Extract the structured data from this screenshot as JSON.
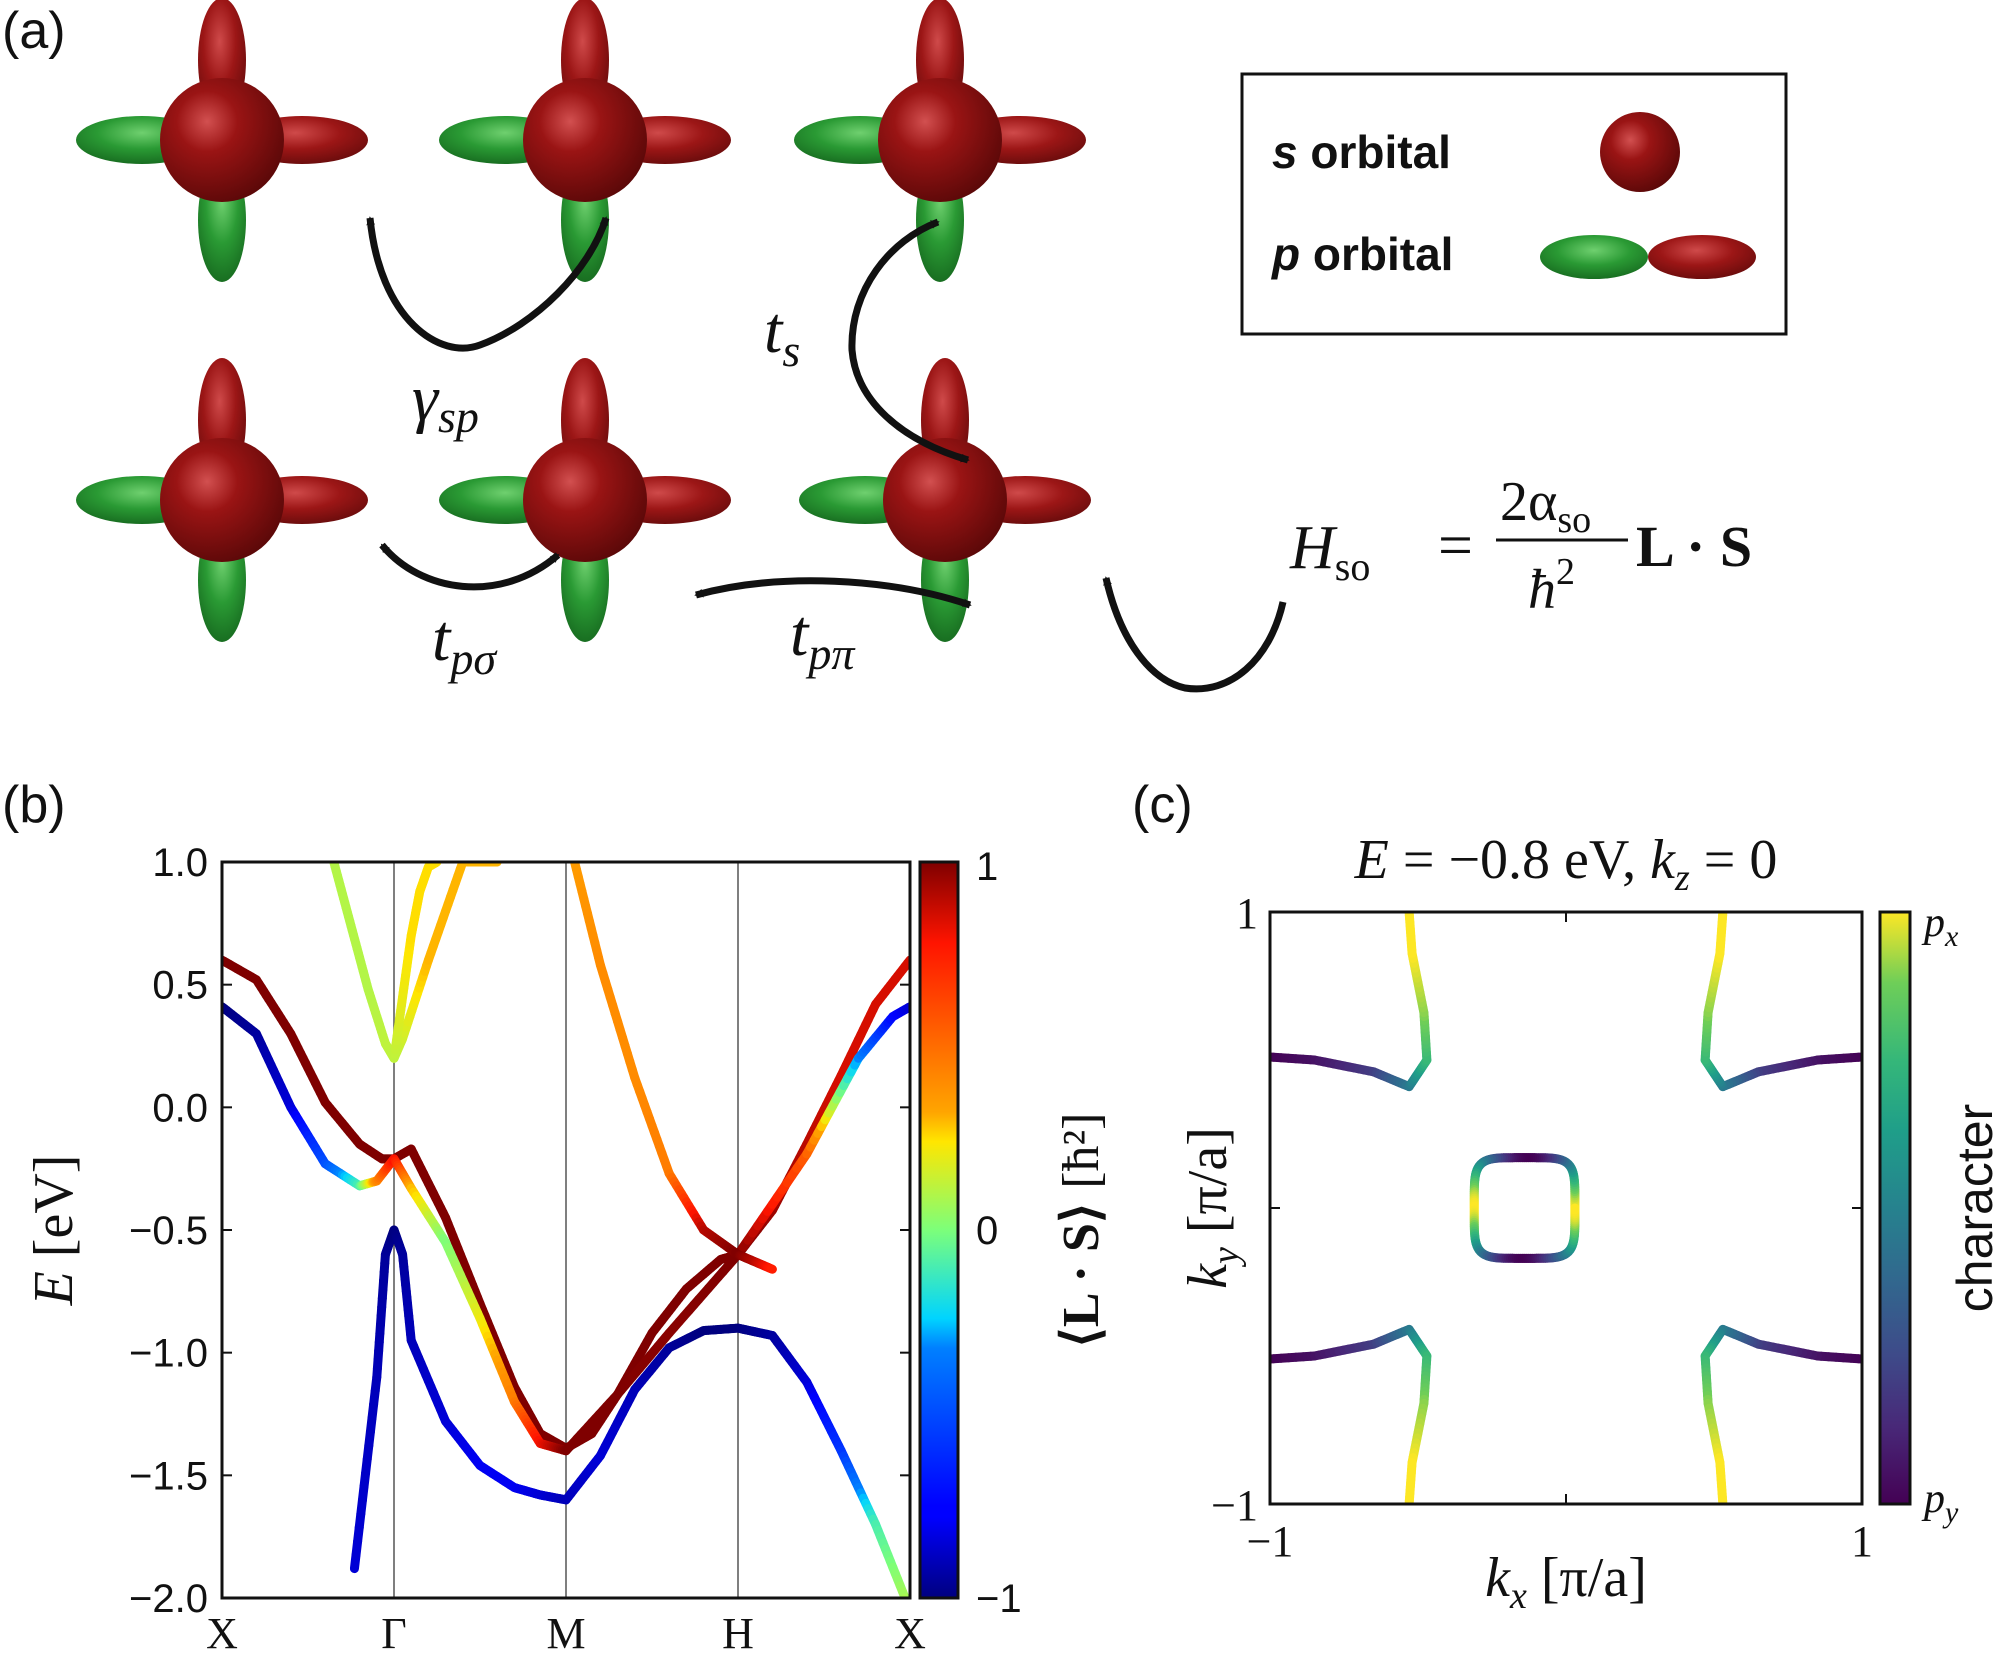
{
  "panels": {
    "a": {
      "label": "(a)",
      "legend": {
        "s_prefix": "s",
        "s_suffix": " orbital",
        "p_prefix": "p",
        "p_suffix": " orbital"
      },
      "hoppings": {
        "gamma_sp": {
          "main": "γ",
          "sub": "sp"
        },
        "t_s": {
          "main": "t",
          "sub": "s"
        },
        "t_psigma": {
          "main": "t",
          "sub": "pσ"
        },
        "t_ppi": {
          "main": "t",
          "sub": "pπ"
        }
      },
      "hamiltonian": {
        "lhs_main": "H",
        "lhs_sub": "so",
        "equals": "=",
        "numerator_coef": "2α",
        "numerator_sub": "so",
        "denominator_main": "ħ",
        "denominator_sup": "2",
        "operator": "L · S"
      }
    },
    "b": {
      "label": "(b)",
      "ylabel": {
        "main": "E",
        "unit": "[eV]"
      },
      "colorbar": {
        "ticks": [
          "1",
          "0",
          "−1"
        ],
        "label_bracket": "⟨L · S⟩",
        "label_unit": "[ħ²]"
      },
      "colors": {
        "neg": "#1a237e",
        "zero": "#7fd3b0",
        "pos": "#7f0000"
      }
    },
    "c": {
      "label": "(c)",
      "title": "E = −0.8 eV,  k_z = 0",
      "title_parts": {
        "e": "E",
        "eq": " = −0.8 eV,  ",
        "k": "k",
        "ksub": "z",
        "tail": " = 0"
      },
      "xlabel": {
        "main": "k",
        "sub": "x",
        "unit": "[π/a]"
      },
      "ylabel": {
        "main": "k",
        "sub": "y",
        "unit": "[π/a]"
      },
      "colorbar": {
        "label": "character",
        "top": {
          "main": "p",
          "sub": "x"
        },
        "bottom": {
          "main": "p",
          "sub": "y"
        }
      }
    }
  },
  "chart_data": [
    {
      "type": "line",
      "panel": "b",
      "xlabel": "",
      "ylabel": "E [eV]",
      "ylim": [
        -2.0,
        1.0
      ],
      "xlim": [
        0,
        4
      ],
      "yticks": [
        1.0,
        0.5,
        0.0,
        -0.5,
        -1.0,
        -1.5,
        -2.0
      ],
      "ytick_labels": [
        "1.0",
        "0.5",
        "0.0",
        "−0.5",
        "−1.0",
        "−1.5",
        "−2.0"
      ],
      "k_points": [
        "X",
        "Γ",
        "M",
        "H",
        "X"
      ],
      "k_point_positions": [
        0,
        1,
        2,
        3,
        4
      ],
      "colorbar_range": [
        -1,
        1
      ],
      "colormap": "jet",
      "series": [
        {
          "x": [
            0,
            0.2,
            0.4,
            0.6,
            0.8,
            0.93,
            1.0,
            1.1,
            1.3,
            1.5,
            1.7,
            1.85,
            2.0,
            2.15,
            2.3,
            2.5,
            2.7,
            2.9,
            3.0,
            3.2,
            3.4,
            3.6,
            3.8,
            4.0
          ],
          "y": [
            0.6,
            0.52,
            0.3,
            0.02,
            -0.15,
            -0.21,
            -0.21,
            -0.17,
            -0.45,
            -0.8,
            -1.14,
            -1.33,
            -1.39,
            -1.33,
            -1.17,
            -0.92,
            -0.74,
            -0.62,
            -0.6,
            -0.42,
            -0.15,
            0.13,
            0.42,
            0.6
          ],
          "c": [
            1,
            1,
            1,
            1,
            1,
            1,
            1,
            1,
            1,
            1,
            1,
            1,
            1,
            1,
            1,
            1,
            1,
            1,
            1,
            0.95,
            0.9,
            0.85,
            0.85,
            0.85
          ]
        },
        {
          "x": [
            0,
            0.2,
            0.4,
            0.6,
            0.8,
            0.9,
            1.0,
            1.1,
            1.3,
            1.5,
            1.7,
            1.85,
            2.0,
            2.3,
            2.6,
            3.0,
            3.4,
            3.7,
            3.9,
            4.0
          ],
          "y": [
            0.41,
            0.3,
            0.0,
            -0.23,
            -0.32,
            -0.3,
            -0.21,
            -0.33,
            -0.55,
            -0.86,
            -1.2,
            -1.37,
            -1.4,
            -1.17,
            -0.92,
            -0.6,
            -0.19,
            0.2,
            0.37,
            0.41
          ],
          "c": [
            -1,
            -0.95,
            -0.85,
            -0.5,
            -0.1,
            0.4,
            0.8,
            0.3,
            0.0,
            0.2,
            0.45,
            0.8,
            1,
            1,
            0.98,
            1,
            0.55,
            -0.3,
            -0.75,
            -0.85
          ]
        },
        {
          "x": [
            0.77,
            0.9,
            0.95,
            1.0,
            1.05,
            1.1,
            1.3,
            1.5,
            1.7,
            1.85,
            2.0,
            2.2,
            2.4,
            2.6,
            2.8,
            3.0,
            3.2,
            3.4,
            3.6,
            3.8,
            4.0
          ],
          "y": [
            -1.88,
            -1.1,
            -0.6,
            -0.5,
            -0.6,
            -0.95,
            -1.28,
            -1.46,
            -1.55,
            -1.58,
            -1.6,
            -1.42,
            -1.15,
            -0.98,
            -0.91,
            -0.9,
            -0.93,
            -1.12,
            -1.4,
            -1.7,
            -2.05
          ],
          "c": [
            -0.85,
            -0.9,
            -0.95,
            -1,
            -0.95,
            -0.9,
            -0.85,
            -0.8,
            -0.8,
            -0.85,
            -0.9,
            -0.85,
            -0.9,
            -0.95,
            -1,
            -1,
            -0.95,
            -0.85,
            -0.6,
            -0.1,
            0.1
          ]
        },
        {
          "x": [
            0.65,
            0.75,
            0.85,
            0.95,
            1.0,
            1.05,
            1.2,
            1.4,
            1.55,
            1.6
          ],
          "y": [
            1.0,
            0.74,
            0.48,
            0.26,
            0.2,
            0.28,
            0.6,
            1.0,
            1.0,
            1.0
          ],
          "c": [
            0.1,
            0.1,
            0.1,
            0.12,
            0.12,
            0.15,
            0.3,
            0.3,
            0.3,
            0.3
          ]
        },
        {
          "x": [
            1.0,
            1.05,
            1.1,
            1.15,
            1.2,
            1.25
          ],
          "y": [
            0.2,
            0.45,
            0.7,
            0.88,
            0.98,
            1.0
          ],
          "c": [
            0.12,
            0.2,
            0.25,
            0.25,
            0.25,
            0.25
          ]
        },
        {
          "x": [
            2.05,
            2.2,
            2.4,
            2.6,
            2.8,
            3.0,
            3.1,
            3.2
          ],
          "y": [
            1.0,
            0.58,
            0.12,
            -0.27,
            -0.5,
            -0.6,
            -0.63,
            -0.66
          ],
          "c": [
            0.35,
            0.4,
            0.4,
            0.45,
            0.9,
            1,
            0.9,
            0.75
          ]
        }
      ]
    },
    {
      "type": "line",
      "panel": "c",
      "title": "E = −0.8 eV,  k_z = 0",
      "xlabel": "k_x [π/a]",
      "ylabel": "k_y [π/a]",
      "xlim": [
        -1,
        1
      ],
      "ylim": [
        -1,
        1
      ],
      "xticks": [
        -1,
        1
      ],
      "yticks": [
        1,
        -1
      ],
      "colorbar": {
        "top": "p_x",
        "bottom": "p_y",
        "label": "character",
        "colormap": "viridis"
      },
      "series": [
        {
          "name": "corner-top-left",
          "x": [
            -1.0,
            -0.85,
            -0.65,
            -0.53,
            -0.47,
            -0.48,
            -0.52,
            -0.53
          ],
          "y": [
            0.51,
            0.5,
            0.46,
            0.41,
            0.5,
            0.66,
            0.86,
            1.0
          ],
          "c": [
            0.0,
            0.05,
            0.2,
            0.45,
            0.75,
            0.9,
            1.0,
            1.0
          ]
        },
        {
          "name": "corner-top-right",
          "x": [
            1.0,
            0.85,
            0.65,
            0.53,
            0.47,
            0.48,
            0.52,
            0.53
          ],
          "y": [
            0.51,
            0.5,
            0.46,
            0.41,
            0.5,
            0.66,
            0.86,
            1.0
          ],
          "c": [
            0.0,
            0.05,
            0.2,
            0.45,
            0.75,
            0.9,
            1.0,
            1.0
          ]
        },
        {
          "name": "corner-bottom-left",
          "x": [
            -1.0,
            -0.85,
            -0.65,
            -0.53,
            -0.47,
            -0.48,
            -0.52,
            -0.53
          ],
          "y": [
            -0.51,
            -0.5,
            -0.46,
            -0.41,
            -0.5,
            -0.66,
            -0.86,
            -1.0
          ],
          "c": [
            0.0,
            0.05,
            0.2,
            0.45,
            0.75,
            0.9,
            1.0,
            1.0
          ]
        },
        {
          "name": "corner-bottom-right",
          "x": [
            1.0,
            0.85,
            0.65,
            0.53,
            0.47,
            0.48,
            0.52,
            0.53
          ],
          "y": [
            -0.51,
            -0.5,
            -0.46,
            -0.41,
            -0.5,
            -0.66,
            -0.86,
            -1.0
          ],
          "c": [
            0.0,
            0.05,
            0.2,
            0.45,
            0.75,
            0.9,
            1.0,
            1.0
          ]
        },
        {
          "name": "center-loop",
          "type": "closed",
          "center": [
            -0.14,
            0.0
          ],
          "half_size": 0.17,
          "c_vertical": 1.0,
          "c_horizontal": 0.0
        }
      ]
    }
  ]
}
